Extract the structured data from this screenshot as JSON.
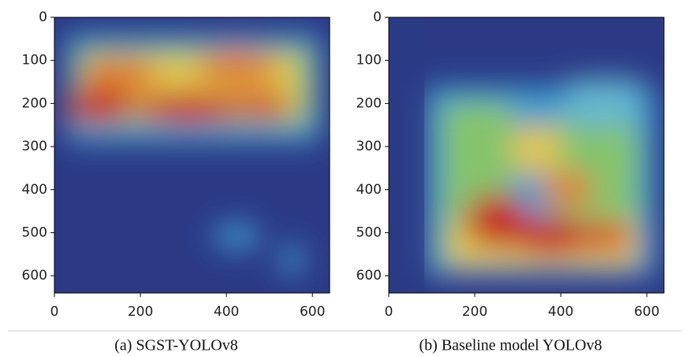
{
  "chart_data": [
    {
      "type": "image",
      "caption": "(a) SGST-YOLOv8",
      "xlim": [
        0,
        640
      ],
      "ylim": [
        640,
        0
      ],
      "xticks": [
        0,
        200,
        400,
        600
      ],
      "yticks": [
        0,
        100,
        200,
        300,
        400,
        500,
        600
      ]
    },
    {
      "type": "image",
      "caption": "(b) Baseline model YOLOv8",
      "xlim": [
        0,
        640
      ],
      "ylim": [
        640,
        0
      ],
      "xticks": [
        0,
        200,
        400,
        600
      ],
      "yticks": [
        0,
        100,
        200,
        300,
        400,
        500,
        600
      ]
    }
  ]
}
